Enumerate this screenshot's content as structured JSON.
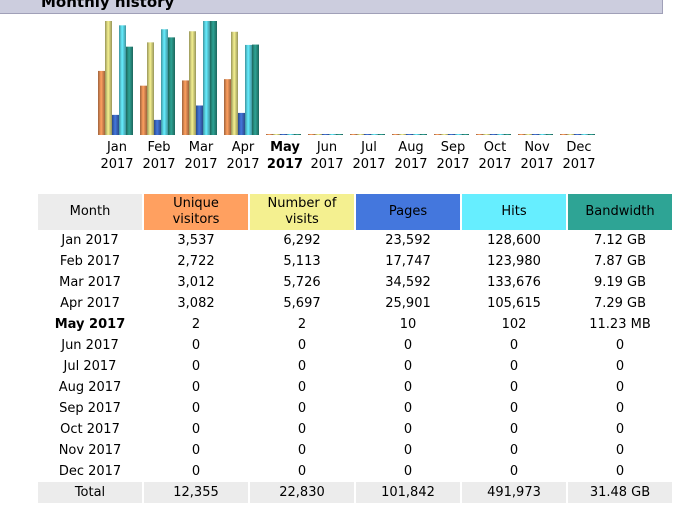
{
  "header": {
    "title": "Monthly history"
  },
  "colors": {
    "unique_visitors": "#ffa060",
    "visits": "#f4f090",
    "pages": "#4477dd",
    "hits": "#66eeff",
    "bandwidth": "#2ea495"
  },
  "chart_data": {
    "type": "bar",
    "categories": [
      "Jan 2017",
      "Feb 2017",
      "Mar 2017",
      "Apr 2017",
      "May 2017",
      "Jun 2017",
      "Jul 2017",
      "Aug 2017",
      "Sep 2017",
      "Oct 2017",
      "Nov 2017",
      "Dec 2017"
    ],
    "series": [
      {
        "name": "Unique visitors",
        "values": [
          3537,
          2722,
          3012,
          3082,
          2,
          0,
          0,
          0,
          0,
          0,
          0,
          0
        ]
      },
      {
        "name": "Number of visits",
        "values": [
          6292,
          5113,
          5726,
          5697,
          2,
          0,
          0,
          0,
          0,
          0,
          0,
          0
        ]
      },
      {
        "name": "Pages",
        "values": [
          23592,
          17747,
          34592,
          25901,
          10,
          0,
          0,
          0,
          0,
          0,
          0,
          0
        ]
      },
      {
        "name": "Hits",
        "values": [
          128600,
          123980,
          133676,
          105615,
          102,
          0,
          0,
          0,
          0,
          0,
          0,
          0
        ]
      },
      {
        "name": "Bandwidth",
        "values": [
          7.12,
          7.87,
          9.19,
          7.29,
          0.011,
          0,
          0,
          0,
          0,
          0,
          0,
          0
        ]
      }
    ],
    "current_month": "May 2017"
  },
  "months": [
    {
      "m": "Jan",
      "y": "2017"
    },
    {
      "m": "Feb",
      "y": "2017"
    },
    {
      "m": "Mar",
      "y": "2017"
    },
    {
      "m": "Apr",
      "y": "2017"
    },
    {
      "m": "May",
      "y": "2017"
    },
    {
      "m": "Jun",
      "y": "2017"
    },
    {
      "m": "Jul",
      "y": "2017"
    },
    {
      "m": "Aug",
      "y": "2017"
    },
    {
      "m": "Sep",
      "y": "2017"
    },
    {
      "m": "Oct",
      "y": "2017"
    },
    {
      "m": "Nov",
      "y": "2017"
    },
    {
      "m": "Dec",
      "y": "2017"
    }
  ],
  "table": {
    "headers": {
      "month": "Month",
      "unique_line1": "Unique",
      "unique_line2": "visitors",
      "visits_line1": "Number of",
      "visits_line2": "visits",
      "pages": "Pages",
      "hits": "Hits",
      "bandwidth": "Bandwidth"
    },
    "rows": [
      [
        "Jan 2017",
        "3,537",
        "6,292",
        "23,592",
        "128,600",
        "7.12 GB"
      ],
      [
        "Feb 2017",
        "2,722",
        "5,113",
        "17,747",
        "123,980",
        "7.87 GB"
      ],
      [
        "Mar 2017",
        "3,012",
        "5,726",
        "34,592",
        "133,676",
        "9.19 GB"
      ],
      [
        "Apr 2017",
        "3,082",
        "5,697",
        "25,901",
        "105,615",
        "7.29 GB"
      ],
      [
        "May 2017",
        "2",
        "2",
        "10",
        "102",
        "11.23 MB"
      ],
      [
        "Jun 2017",
        "0",
        "0",
        "0",
        "0",
        "0"
      ],
      [
        "Jul 2017",
        "0",
        "0",
        "0",
        "0",
        "0"
      ],
      [
        "Aug 2017",
        "0",
        "0",
        "0",
        "0",
        "0"
      ],
      [
        "Sep 2017",
        "0",
        "0",
        "0",
        "0",
        "0"
      ],
      [
        "Oct 2017",
        "0",
        "0",
        "0",
        "0",
        "0"
      ],
      [
        "Nov 2017",
        "0",
        "0",
        "0",
        "0",
        "0"
      ],
      [
        "Dec 2017",
        "0",
        "0",
        "0",
        "0",
        "0"
      ]
    ],
    "total": [
      "Total",
      "12,355",
      "22,830",
      "101,842",
      "491,973",
      "31.48 GB"
    ]
  }
}
